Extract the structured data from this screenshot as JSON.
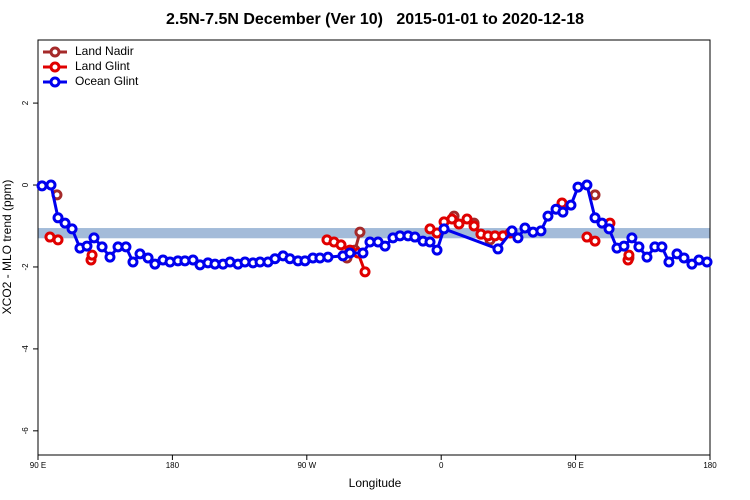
{
  "chart_data": {
    "type": "line",
    "title": "2.5N-7.5N December (Ver 10)   2015-01-01 to 2020-12-18",
    "xlabel": "Longitude",
    "ylabel": "XCO2 - MLO trend (ppm)",
    "xlim": [
      90,
      540
    ],
    "ylim": [
      -6.59,
      3.54
    ],
    "xticks": [
      {
        "value": 90,
        "label": "90 E"
      },
      180,
      {
        "value": 270,
        "label": "90 W"
      },
      {
        "value": 360,
        "label": "0"
      },
      {
        "value": 450,
        "label": "90 E"
      },
      {
        "value": 540,
        "label": "180"
      }
    ],
    "yticks": [
      -6,
      -4,
      -2,
      0,
      2
    ],
    "band": [
      -1.05,
      -1.3
    ],
    "band_color": "#a3bbd9",
    "legend": "top-left",
    "series": [
      {
        "name": "Land Nadir",
        "color": "#a52a2a",
        "x": [
          102.7,
          200,
          296.9,
          302.3,
          305.6,
          337,
          368.6,
          375,
          382.0,
          387,
          392.7,
          417,
          441.5,
          452,
          463.0,
          474,
          485.7
        ],
        "values": [
          -0.24,
          null,
          -1.78,
          -1.59,
          -1.15,
          null,
          -0.76,
          null,
          -0.93,
          null,
          -1.34,
          null,
          -0.54,
          null,
          -0.24,
          null,
          -1.78
        ]
      },
      {
        "name": "Land Glint",
        "color": "#e00000",
        "x": [
          98.0,
          103.4,
          114,
          125.5,
          126.2,
          205,
          283.5,
          288.2,
          292.9,
          298.9,
          304.3,
          309.0,
          330,
          352.5,
          357.2,
          361.9,
          367.2,
          371.9,
          377.3,
          382.0,
          386.6,
          391.3,
          396.0,
          401.4,
          406.1,
          423,
          440.9,
          449,
          457.6,
          463.0,
          468,
          473.0,
          479,
          485.1,
          485.7
        ],
        "values": [
          -1.27,
          -1.34,
          null,
          -1.83,
          -1.71,
          null,
          -1.34,
          -1.39,
          -1.46,
          -1.59,
          -1.66,
          -2.12,
          null,
          -1.07,
          -1.17,
          -0.9,
          -0.83,
          -0.95,
          -0.83,
          -1.0,
          -1.2,
          -1.24,
          -1.24,
          -1.24,
          -1.17,
          null,
          -0.44,
          null,
          -1.27,
          -1.37,
          null,
          -0.93,
          null,
          -1.83,
          -1.71
        ]
      },
      {
        "name": "Ocean Glint",
        "color": "#0000ee",
        "x": [
          92.7,
          98.7,
          103.4,
          108.1,
          112.8,
          118.1,
          122.8,
          127.5,
          132.9,
          138.2,
          143.6,
          148.9,
          153.6,
          158.3,
          163.7,
          168.3,
          173.7,
          178.4,
          183.7,
          188.4,
          193.8,
          198.5,
          203.8,
          208.5,
          213.9,
          218.6,
          223.9,
          228.6,
          234.0,
          238.7,
          244.0,
          248.7,
          254.1,
          258.7,
          264.1,
          268.8,
          274.1,
          278.8,
          284.2,
          294.2,
          298.9,
          307.6,
          312.3,
          317.7,
          322.4,
          327.7,
          332.4,
          337.8,
          342.4,
          347.8,
          352.5,
          357.2,
          361.9,
          398.0,
          407.4,
          411.4,
          416.1,
          421.5,
          426.8,
          431.5,
          436.9,
          441.5,
          446.9,
          451.6,
          457.6,
          463.0,
          467.7,
          472.4,
          477.7,
          482.4,
          487.7,
          492.4,
          497.8,
          503.1,
          507.8,
          512.5,
          517.9,
          522.6,
          527.9,
          532.6,
          538.0
        ],
        "values": [
          -0.02,
          0,
          -0.8,
          -0.93,
          -1.07,
          -1.54,
          -1.49,
          -1.29,
          -1.51,
          -1.76,
          -1.51,
          -1.51,
          -1.88,
          -1.68,
          -1.78,
          -1.93,
          -1.83,
          -1.88,
          -1.85,
          -1.85,
          -1.83,
          -1.95,
          -1.9,
          -1.93,
          -1.93,
          -1.88,
          -1.93,
          -1.88,
          -1.9,
          -1.88,
          -1.88,
          -1.8,
          -1.73,
          -1.8,
          -1.85,
          -1.85,
          -1.78,
          -1.78,
          -1.76,
          -1.73,
          -1.66,
          -1.66,
          -1.39,
          -1.39,
          -1.49,
          -1.29,
          -1.24,
          -1.24,
          -1.27,
          -1.37,
          -1.39,
          -1.59,
          -1.07,
          -1.56,
          -1.12,
          -1.29,
          -1.05,
          -1.15,
          -1.12,
          -0.76,
          -0.59,
          -0.66,
          -0.49,
          -0.05,
          0,
          -0.8,
          -0.93,
          -1.07,
          -1.54,
          -1.49,
          -1.29,
          -1.51,
          -1.76,
          -1.51,
          -1.51,
          -1.88,
          -1.68,
          -1.78,
          -1.93,
          -1.83,
          -1.88
        ]
      }
    ]
  }
}
